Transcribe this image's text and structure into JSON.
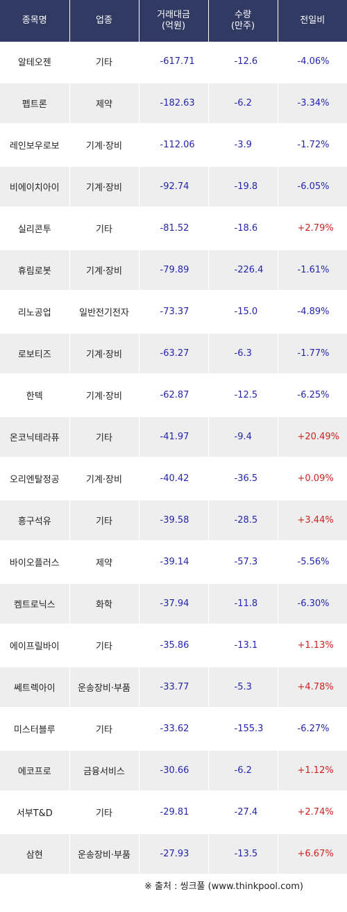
{
  "headers": [
    "종목명",
    "업종",
    "거래대금\n(억원)",
    "수량\n(만주)",
    "전일비"
  ],
  "rows": [
    [
      "알테오젠",
      "기타",
      "-617.71",
      "-12.6",
      "-4.06%"
    ],
    [
      "펩트론",
      "제약",
      "-182.63",
      "-6.2",
      "-3.34%"
    ],
    [
      "레인보우로보",
      "기계·장비",
      "-112.06",
      "-3.9",
      "-1.72%"
    ],
    [
      "비에이치아이",
      "기계·장비",
      "-92.74",
      "-19.8",
      "-6.05%"
    ],
    [
      "실리콘투",
      "기타",
      "-81.52",
      "-18.6",
      "+2.79%"
    ],
    [
      "휴림로봇",
      "기계·장비",
      "-79.89",
      "-226.4",
      "-1.61%"
    ],
    [
      "리노공업",
      "일반전기전자",
      "-73.37",
      "-15.0",
      "-4.89%"
    ],
    [
      "로보티즈",
      "기계·장비",
      "-63.27",
      "-6.3",
      "-1.77%"
    ],
    [
      "한텍",
      "기계·장비",
      "-62.87",
      "-12.5",
      "-6.25%"
    ],
    [
      "온코닉테라퓨",
      "기타",
      "-41.97",
      "-9.4",
      "+20.49%"
    ],
    [
      "오리엔탈정공",
      "기계·장비",
      "-40.42",
      "-36.5",
      "+0.09%"
    ],
    [
      "흥구석유",
      "기타",
      "-39.58",
      "-28.5",
      "+3.44%"
    ],
    [
      "바이오플러스",
      "제약",
      "-39.14",
      "-57.3",
      "-5.56%"
    ],
    [
      "켐트로닉스",
      "화학",
      "-37.94",
      "-11.8",
      "-6.30%"
    ],
    [
      "에이프릴바이",
      "기타",
      "-35.86",
      "-13.1",
      "+1.13%"
    ],
    [
      "쎄트렉아이",
      "운송장비·부품",
      "-33.77",
      "-5.3",
      "+4.78%"
    ],
    [
      "미스터블루",
      "기타",
      "-33.62",
      "-155.3",
      "-6.27%"
    ],
    [
      "에코프로",
      "금융서비스",
      "-30.66",
      "-6.2",
      "+1.12%"
    ],
    [
      "서부T&D",
      "기타",
      "-29.81",
      "-27.4",
      "+2.74%"
    ],
    [
      "삼현",
      "운송장비·부품",
      "-27.93",
      "-13.5",
      "+6.67%"
    ]
  ],
  "source": "※ 출처 : 씽크풀 (www.thinkpool.com)",
  "colors": {
    "header_bg": "#303a63",
    "negative": "#2424b0",
    "positive": "#d11f1f",
    "row_alt": "#eeeeee"
  }
}
